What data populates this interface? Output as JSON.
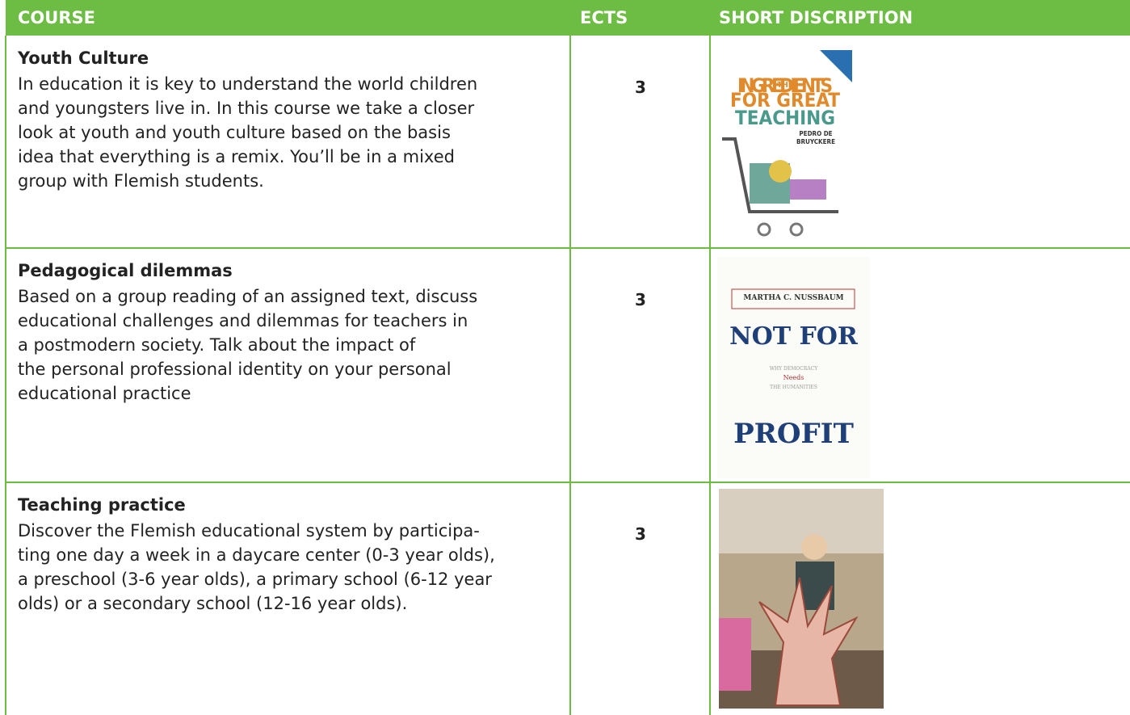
{
  "table": {
    "header": [
      "COURSE",
      "ECTS",
      "SHORT DISCRIPTION"
    ],
    "rows": [
      {
        "title": "Youth Culture",
        "description_lines": [
          "In education it is key to understand the world children",
          "and youngsters live in. In this course we take a closer",
          "look at youth and youth culture based on the basis",
          "idea that everything is a remix. You’ll be in a mixed",
          "group with Flemish students."
        ],
        "ects": 3,
        "image": {
          "kind": "cover-ingredients",
          "lines": [
            "THE",
            "INGREDIENTS",
            "FOR GREAT",
            "TEACHING",
            "PEDRO DE",
            "BRUYCKERE"
          ]
        }
      },
      {
        "title": "Pedagogical dilemmas",
        "description_lines": [
          "Based on a group reading of an assigned text, discuss",
          "educational challenges and dilemmas for teachers in",
          "a postmodern society. Talk about the impact of",
          "the personal professional identity on your personal",
          "educational practice"
        ],
        "ects": 3,
        "image": {
          "kind": "cover-profit",
          "lines": [
            "MARTHA C. NUSSBAUM",
            "NOT FOR",
            "WHY DEMOCRACY",
            "Needs",
            "THE HUMANITIES",
            "PROFIT"
          ]
        }
      },
      {
        "title": "Teaching practice",
        "description_lines": [
          "Discover the Flemish educational system by participa-",
          "ting one day a week in a daycare center (0-3 year olds),",
          "a preschool (3-6 year olds), a primary school (6-12 year",
          "olds) or a secondary school (12-16 year olds)."
        ],
        "ects": 3,
        "image": {
          "kind": "photo"
        }
      }
    ]
  }
}
